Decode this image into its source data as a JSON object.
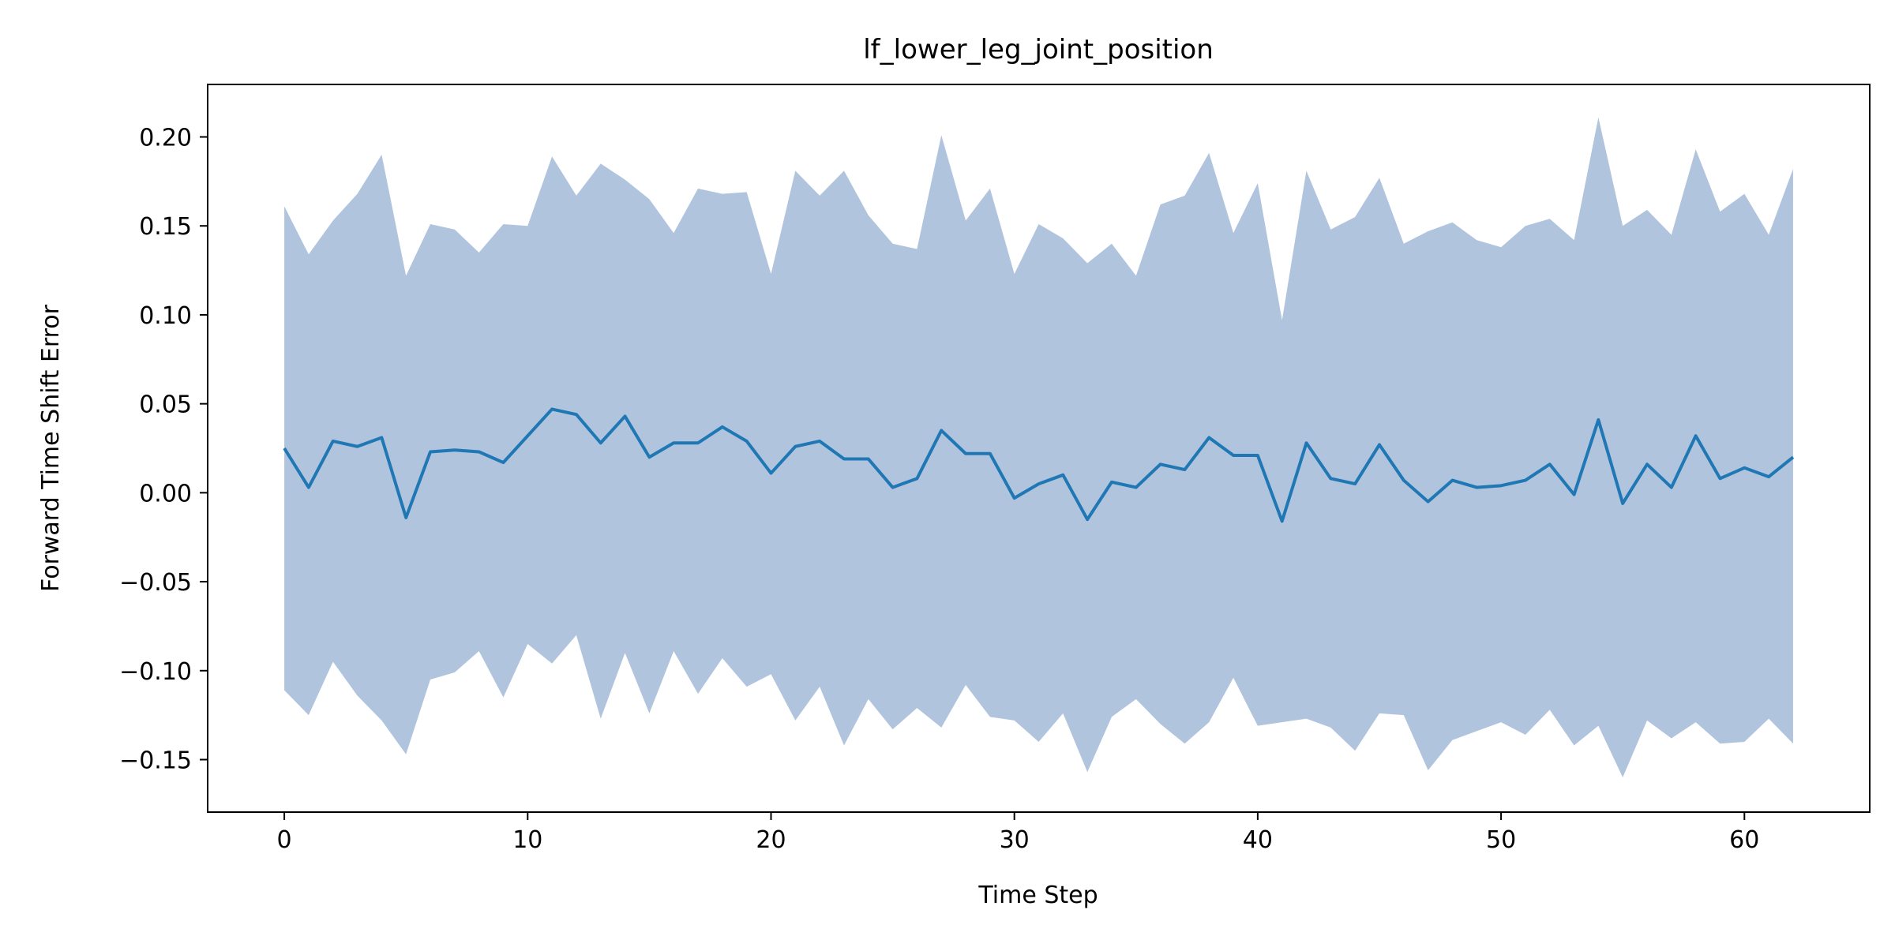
{
  "chart_data": {
    "type": "line",
    "title": "lf_lower_leg_joint_position",
    "xlabel": "Time Step",
    "ylabel": "Forward Time Shift Error",
    "xlim": [
      -3.15,
      65.15
    ],
    "ylim": [
      -0.1795,
      0.2295
    ],
    "x_ticks": [
      0,
      10,
      20,
      30,
      40,
      50,
      60
    ],
    "y_ticks": [
      -0.15,
      -0.1,
      -0.05,
      0.0,
      0.05,
      0.1,
      0.15,
      0.2
    ],
    "x_tick_labels": [
      "0",
      "10",
      "20",
      "30",
      "40",
      "50",
      "60"
    ],
    "y_tick_labels": [
      "−0.15",
      "−0.10",
      "−0.05",
      "0.00",
      "0.05",
      "0.10",
      "0.15",
      "0.20"
    ],
    "grid": false,
    "x": [
      0,
      1,
      2,
      3,
      4,
      5,
      6,
      7,
      8,
      9,
      10,
      11,
      12,
      13,
      14,
      15,
      16,
      17,
      18,
      19,
      20,
      21,
      22,
      23,
      24,
      25,
      26,
      27,
      28,
      29,
      30,
      31,
      32,
      33,
      34,
      35,
      36,
      37,
      38,
      39,
      40,
      41,
      42,
      43,
      44,
      45,
      46,
      47,
      48,
      49,
      50,
      51,
      52,
      53,
      54,
      55,
      56,
      57,
      58,
      59,
      60,
      61,
      62
    ],
    "series": [
      {
        "color": "#1f77b4",
        "values": [
          0.025,
          0.003,
          0.029,
          0.026,
          0.031,
          -0.014,
          0.023,
          0.024,
          0.023,
          0.017,
          0.032,
          0.047,
          0.044,
          0.028,
          0.043,
          0.02,
          0.028,
          0.028,
          0.037,
          0.029,
          0.011,
          0.026,
          0.029,
          0.019,
          0.019,
          0.003,
          0.008,
          0.035,
          0.022,
          0.022,
          -0.003,
          0.005,
          0.01,
          -0.015,
          0.006,
          0.003,
          0.016,
          0.013,
          0.031,
          0.021,
          0.021,
          -0.016,
          0.028,
          0.008,
          0.005,
          0.027,
          0.007,
          -0.005,
          0.007,
          0.003,
          0.004,
          0.007,
          0.016,
          -0.001,
          0.041,
          -0.006,
          0.016,
          0.003,
          0.032,
          0.008,
          0.014,
          0.009,
          0.02
        ]
      }
    ],
    "band": {
      "color": "#b0c4de",
      "lower": [
        -0.111,
        -0.125,
        -0.095,
        -0.114,
        -0.128,
        -0.147,
        -0.105,
        -0.101,
        -0.089,
        -0.115,
        -0.085,
        -0.096,
        -0.08,
        -0.127,
        -0.09,
        -0.124,
        -0.089,
        -0.113,
        -0.093,
        -0.109,
        -0.102,
        -0.128,
        -0.109,
        -0.142,
        -0.116,
        -0.133,
        -0.121,
        -0.132,
        -0.108,
        -0.126,
        -0.128,
        -0.14,
        -0.124,
        -0.157,
        -0.126,
        -0.116,
        -0.13,
        -0.141,
        -0.129,
        -0.104,
        -0.131,
        -0.129,
        -0.127,
        -0.132,
        -0.145,
        -0.124,
        -0.125,
        -0.156,
        -0.139,
        -0.134,
        -0.129,
        -0.136,
        -0.122,
        -0.142,
        -0.131,
        -0.16,
        -0.128,
        -0.138,
        -0.129,
        -0.141,
        -0.14,
        -0.127,
        -0.141
      ],
      "upper": [
        0.161,
        0.134,
        0.153,
        0.168,
        0.19,
        0.122,
        0.151,
        0.148,
        0.135,
        0.151,
        0.15,
        0.189,
        0.167,
        0.185,
        0.176,
        0.165,
        0.146,
        0.171,
        0.168,
        0.169,
        0.123,
        0.181,
        0.167,
        0.181,
        0.156,
        0.14,
        0.137,
        0.201,
        0.153,
        0.171,
        0.123,
        0.151,
        0.143,
        0.129,
        0.14,
        0.122,
        0.162,
        0.167,
        0.191,
        0.146,
        0.174,
        0.097,
        0.181,
        0.148,
        0.155,
        0.177,
        0.14,
        0.147,
        0.152,
        0.142,
        0.138,
        0.15,
        0.154,
        0.142,
        0.211,
        0.15,
        0.159,
        0.145,
        0.193,
        0.158,
        0.168,
        0.145,
        0.182
      ]
    }
  }
}
